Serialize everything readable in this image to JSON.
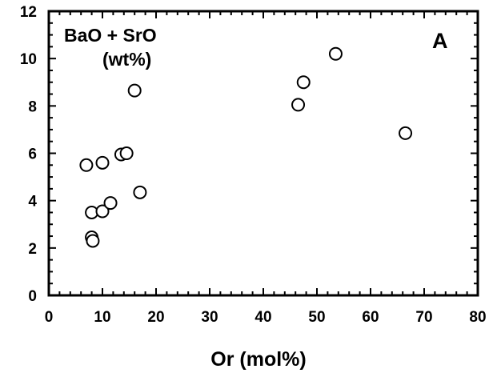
{
  "chart_data": {
    "type": "scatter",
    "xlabel": "Or (mol%)",
    "ylabel": "",
    "xlim": [
      0,
      80
    ],
    "ylim": [
      0,
      12
    ],
    "x_ticks": [
      0,
      10,
      20,
      30,
      40,
      50,
      60,
      70,
      80
    ],
    "y_ticks": [
      0,
      2,
      4,
      6,
      8,
      10,
      12
    ],
    "grid": false,
    "marker": "open-circle",
    "annotation_line1": "BaO + SrO",
    "annotation_line2": "(wt%)",
    "panel_label": "A",
    "points": [
      {
        "x": 7.0,
        "y": 5.5
      },
      {
        "x": 10.0,
        "y": 5.6
      },
      {
        "x": 13.5,
        "y": 5.95
      },
      {
        "x": 14.5,
        "y": 6.0
      },
      {
        "x": 16.0,
        "y": 8.65
      },
      {
        "x": 17.0,
        "y": 4.35
      },
      {
        "x": 8.0,
        "y": 3.5
      },
      {
        "x": 10.0,
        "y": 3.55
      },
      {
        "x": 11.5,
        "y": 3.9
      },
      {
        "x": 8.0,
        "y": 2.45
      },
      {
        "x": 8.2,
        "y": 2.3
      },
      {
        "x": 46.5,
        "y": 8.05
      },
      {
        "x": 47.5,
        "y": 9.0
      },
      {
        "x": 53.5,
        "y": 10.2
      },
      {
        "x": 66.5,
        "y": 6.85
      }
    ]
  }
}
